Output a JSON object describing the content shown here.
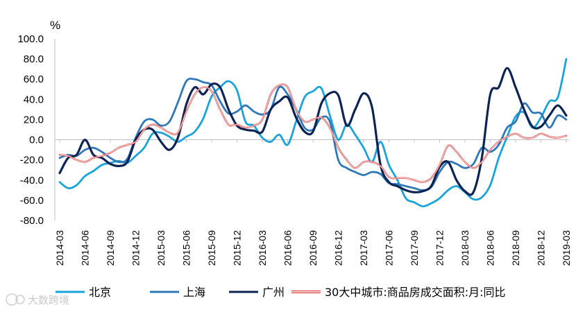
{
  "chart_data": {
    "type": "line",
    "unit": "%",
    "ylim": [
      -80,
      100
    ],
    "yticks": [
      "100.0",
      "80.0",
      "60.0",
      "40.0",
      "20.0",
      "0.0",
      "-20.0",
      "-40.0",
      "-60.0",
      "-80.0"
    ],
    "ytick_values": [
      100,
      80,
      60,
      40,
      20,
      0,
      -20,
      -40,
      -60,
      -80
    ],
    "x_start": "2014-03",
    "x_end": "2019-03",
    "xticks": [
      "2014-03",
      "2014-06",
      "2014-09",
      "2014-12",
      "2015-03",
      "2015-06",
      "2015-09",
      "2015-12",
      "2016-03",
      "2016-06",
      "2016-09",
      "2016-12",
      "2017-03",
      "2017-06",
      "2017-09",
      "2017-12",
      "2018-03",
      "2018-06",
      "2018-09",
      "2018-12",
      "2019-03"
    ],
    "xtick_index": [
      0,
      3,
      6,
      9,
      12,
      15,
      18,
      21,
      24,
      27,
      30,
      33,
      36,
      39,
      42,
      45,
      48,
      51,
      54,
      57,
      60
    ],
    "series": [
      {
        "name": "北京",
        "color": "#1aa3d9",
        "width": 2.8,
        "values": [
          -42,
          -48,
          -45,
          -36,
          -31,
          -25,
          -23,
          -21,
          -23,
          -16,
          -8,
          6,
          7,
          3,
          -2,
          3,
          8,
          21,
          43,
          52,
          58,
          49,
          18,
          14,
          2,
          -2,
          5,
          -5,
          18,
          42,
          48,
          51,
          24,
          0,
          15,
          5,
          -8,
          -22,
          -2,
          -25,
          -40,
          -58,
          -62,
          -66,
          -63,
          -58,
          -50,
          -46,
          -52,
          -59,
          -57,
          -45,
          -18,
          3,
          23,
          27,
          12,
          22,
          38,
          42,
          80
        ]
      },
      {
        "name": "上海",
        "color": "#2f78b7",
        "width": 2.8,
        "values": [
          -18,
          -15,
          -16,
          -10,
          -8,
          -12,
          -18,
          -22,
          -19,
          2,
          18,
          20,
          14,
          18,
          37,
          58,
          60,
          57,
          54,
          38,
          26,
          28,
          34,
          28,
          25,
          30,
          52,
          45,
          30,
          12,
          10,
          22,
          18,
          -20,
          -28,
          -32,
          -35,
          -32,
          -34,
          -43,
          -44,
          -46,
          -48,
          -50,
          -47,
          -32,
          -22,
          -24,
          -28,
          -24,
          -8,
          -12,
          -5,
          12,
          18,
          36,
          27,
          26,
          12,
          24,
          20
        ]
      },
      {
        "name": "广州",
        "color": "#0d2353",
        "width": 3.2,
        "values": [
          -33,
          -18,
          -15,
          0,
          -15,
          -18,
          -24,
          -26,
          -22,
          0,
          10,
          10,
          -2,
          -10,
          2,
          35,
          52,
          45,
          55,
          52,
          30,
          14,
          10,
          9,
          8,
          30,
          38,
          42,
          22,
          8,
          8,
          36,
          46,
          44,
          14,
          30,
          46,
          32,
          -25,
          -42,
          -46,
          -50,
          -52,
          -51,
          -46,
          -27,
          -22,
          -40,
          -51,
          -52,
          -18,
          45,
          52,
          71,
          52,
          30,
          13,
          13,
          24,
          34,
          24
        ]
      },
      {
        "name": "30大中城市:商品房成交面积:月:同比",
        "color": "#e03c3c",
        "width": 2.4,
        "double": true,
        "values": [
          -15,
          -16,
          -20,
          -22,
          -18,
          -16,
          -13,
          -8,
          -5,
          -2,
          10,
          15,
          12,
          7,
          7,
          28,
          45,
          52,
          48,
          30,
          15,
          15,
          12,
          14,
          20,
          45,
          54,
          52,
          30,
          18,
          20,
          22,
          12,
          -8,
          -20,
          -28,
          -22,
          -22,
          -26,
          -37,
          -38,
          -38,
          -40,
          -42,
          -38,
          -25,
          -6,
          -12,
          -22,
          -28,
          -22,
          -10,
          -2,
          3,
          6,
          2,
          2,
          6,
          3,
          2,
          4
        ]
      }
    ]
  },
  "watermark": "大数跨境"
}
